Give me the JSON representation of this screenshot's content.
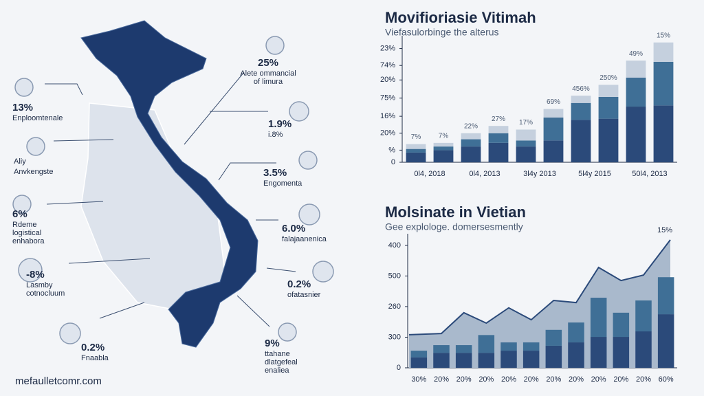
{
  "footer": "mefaulletcomr.com",
  "callouts": [
    {
      "value": "13%",
      "lines": [
        "Enploomtenale"
      ]
    },
    {
      "value": "Aliy",
      "lines": [
        "Anvkengste"
      ]
    },
    {
      "value": "6%",
      "lines": [
        "Rdeme",
        "logistical",
        "enhabora"
      ]
    },
    {
      "value": "-8%",
      "lines": [
        "Lasmby",
        "cotnocluum"
      ]
    },
    {
      "value": "0.2%",
      "lines": [
        "Fnaabla"
      ]
    },
    {
      "value": "25%",
      "lines": [
        "Alete ommancial",
        "of limura"
      ]
    },
    {
      "value": "1.9%",
      "lines": [
        "i.8%"
      ]
    },
    {
      "value": "3.5%",
      "lines": [
        "Engomenta"
      ]
    },
    {
      "value": "6.0%",
      "lines": [
        "falajaanenica"
      ]
    },
    {
      "value": "0.2%",
      "lines": [
        "ofatasnier"
      ]
    },
    {
      "value": "9%",
      "lines": [
        "ttahane",
        "dlatgefeal",
        "enaliea"
      ]
    }
  ],
  "chart_data": [
    {
      "type": "bar",
      "stacked": true,
      "title": "Movifioriasie Vitimah",
      "subtitle": "Viefasulorbinge the alterus",
      "categories": [
        "0l4, 2018",
        null,
        "0l4, 2013",
        null,
        "3l4y 2013",
        null,
        "5l4y 2015",
        null,
        "50l4, 2013",
        null
      ],
      "series": [
        {
          "color": "#2b4a7a",
          "values": [
            8,
            10,
            13,
            16,
            13,
            18,
            35,
            36,
            46,
            47
          ]
        },
        {
          "color": "#3f6f96",
          "values": [
            3,
            3,
            6,
            8,
            5,
            19,
            14,
            18,
            24,
            36
          ]
        },
        {
          "color": "#c5d0de",
          "values": [
            4,
            3,
            5,
            6,
            9,
            7,
            6,
            10,
            14,
            16
          ]
        }
      ],
      "annotations": [
        "7%",
        "7%",
        "22%",
        "27%",
        "17%",
        "69%",
        "456%",
        "250%",
        "49%",
        "15%"
      ],
      "ylim": [
        0,
        100
      ],
      "yticks": [
        0,
        {
          "value": 10,
          "label": "%"
        },
        {
          "value": 24,
          "label": "20%"
        },
        {
          "value": 38,
          "label": "16%"
        },
        {
          "value": 53,
          "label": "75%"
        },
        {
          "value": 68,
          "label": "20%"
        },
        {
          "value": 80,
          "label": "74%"
        },
        {
          "value": 94,
          "label": "23%"
        }
      ]
    },
    {
      "type": "area",
      "title": "Molsinate in Vietian",
      "subtitle": "Gee explologe. domersesmently",
      "categories": [
        "30%",
        "20%",
        "20%",
        "20%",
        "20%",
        "20%",
        "20%",
        "20%",
        "20%",
        "20%",
        "20%",
        "60%"
      ],
      "area": {
        "color": "#a9b9cc",
        "line_color": "#2b4a7a",
        "values": [
          108,
          112,
          180,
          146,
          196,
          157,
          220,
          213,
          328,
          285,
          303,
          418
        ]
      },
      "series": [
        {
          "color": "#2b4a7a",
          "values": [
            34,
            49,
            49,
            49,
            56,
            56,
            72,
            83,
            101,
            101,
            119,
            175
          ]
        },
        {
          "color": "#3f6f96",
          "values": [
            22,
            25,
            25,
            58,
            27,
            27,
            52,
            65,
            128,
            79,
            101,
            121
          ]
        }
      ],
      "annotation": "15%",
      "ylim": [
        0,
        420
      ],
      "yticks": [
        0,
        {
          "value": 100,
          "label": "300"
        },
        {
          "value": 200,
          "label": "260"
        },
        {
          "value": 300,
          "label": "500"
        },
        400
      ]
    }
  ]
}
